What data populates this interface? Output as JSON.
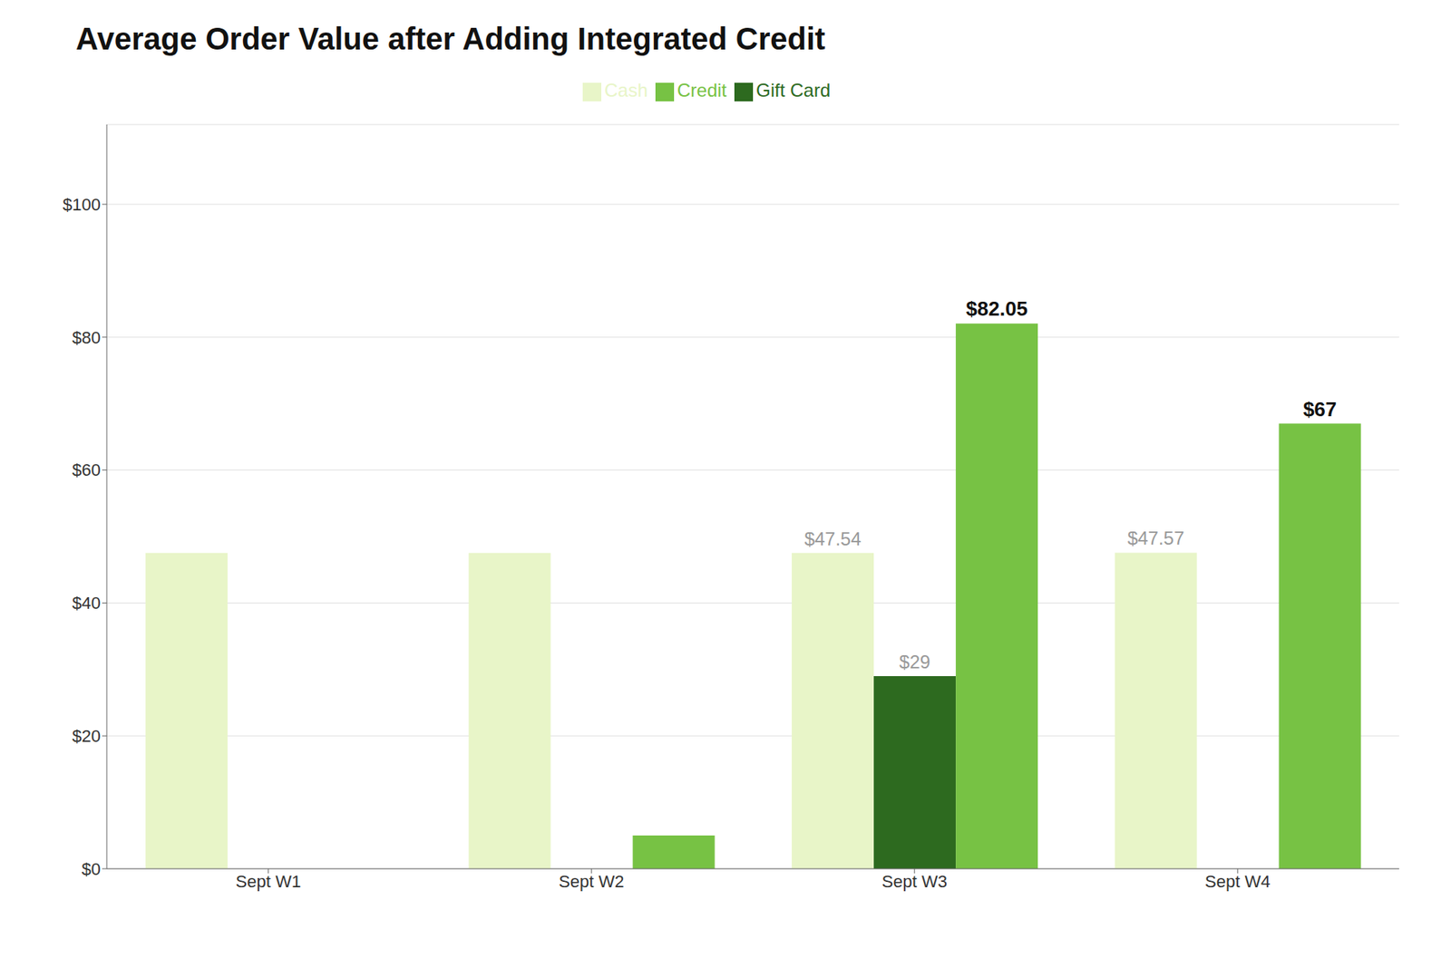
{
  "chart_data": {
    "type": "bar",
    "title": "Average Order Value after Adding Integrated Credit",
    "categories": [
      "Sept W1",
      "Sept W2",
      "Sept W3",
      "Sept W4"
    ],
    "series": [
      {
        "name": "Cash",
        "color": "#e8f5c8",
        "values": [
          47.54,
          47.54,
          47.54,
          47.57
        ],
        "value_labels": [
          null,
          null,
          "$47.54",
          "$47.57"
        ]
      },
      {
        "name": "Gift Card",
        "color": "#2d6a1f",
        "values": [
          null,
          null,
          29.0,
          null
        ],
        "value_labels": [
          null,
          null,
          "$29",
          null
        ]
      },
      {
        "name": "Credit",
        "color": "#77c244",
        "values": [
          null,
          5.0,
          82.05,
          67.0
        ],
        "value_labels": [
          null,
          null,
          "$82.05",
          "$67"
        ]
      }
    ],
    "ylim": [
      0,
      112
    ],
    "yticks": [
      {
        "value": 0,
        "label": "$0"
      },
      {
        "value": 20,
        "label": "$20"
      },
      {
        "value": 40,
        "label": "$40"
      },
      {
        "value": 60,
        "label": "$60"
      },
      {
        "value": 80,
        "label": "$80"
      },
      {
        "value": 100,
        "label": "$100"
      }
    ],
    "grid": true,
    "legend": "top"
  }
}
